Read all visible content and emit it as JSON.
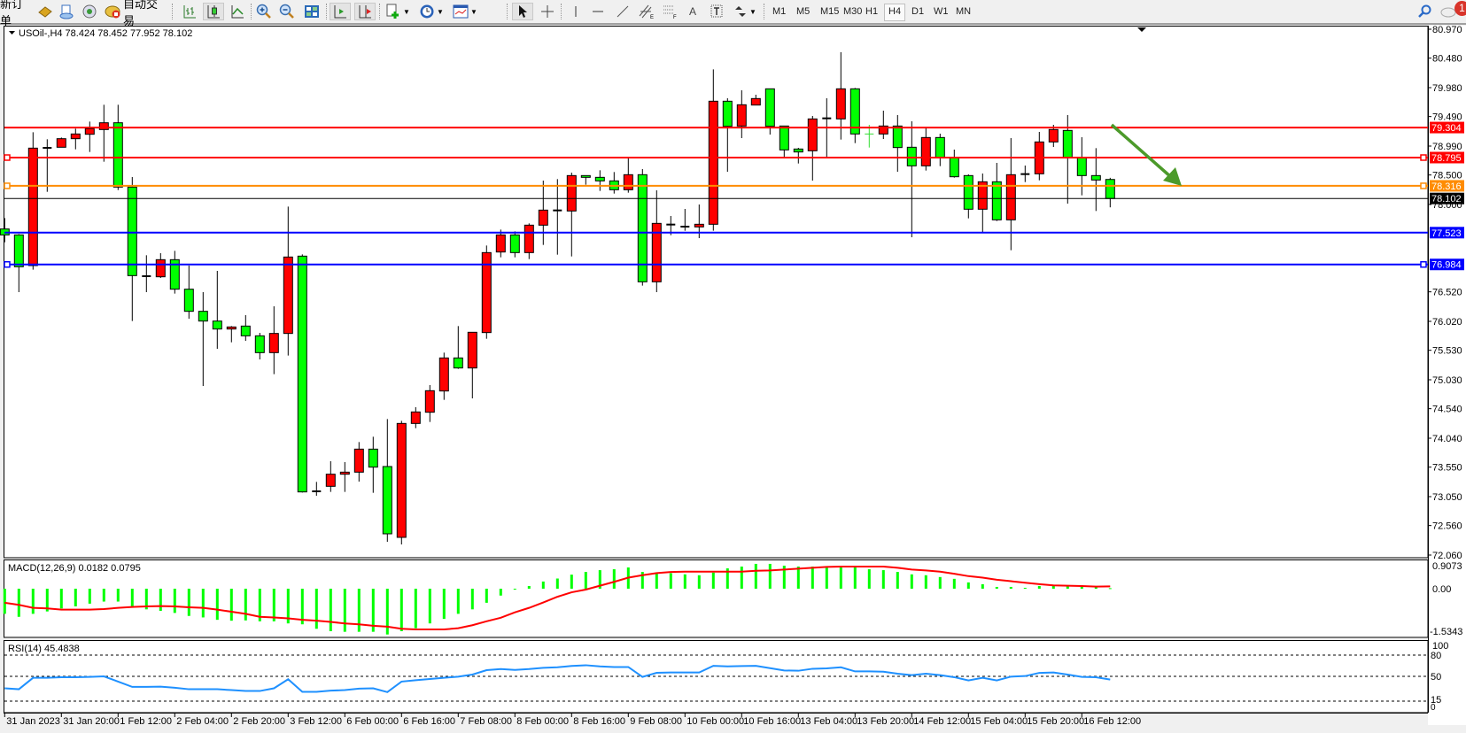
{
  "toolbar": {
    "new_order_label": "新订单",
    "auto_trading_label": "自动交易",
    "timeframes": [
      "M1",
      "M5",
      "M15",
      "M30",
      "H1",
      "H4",
      "D1",
      "W1",
      "MN"
    ],
    "active_timeframe": "H4",
    "notification_count": "1"
  },
  "chart": {
    "header": "USOil-,H4  78.424 78.452 77.952 78.102",
    "symbol": "USOil-",
    "timeframe": "H4",
    "up_color": "#ff0000",
    "down_color": "#00ff00",
    "price_ticks": [
      "80.970",
      "80.480",
      "79.980",
      "79.490",
      "78.990",
      "78.500",
      "78.000",
      "76.520",
      "76.020",
      "75.530",
      "75.030",
      "74.540",
      "74.040",
      "73.550",
      "73.050",
      "72.560",
      "72.060"
    ],
    "hlines": [
      {
        "price": 79.304,
        "label": "79.304",
        "color": "#ff0000",
        "selected": false
      },
      {
        "price": 78.795,
        "label": "78.795",
        "color": "#ff0000",
        "selected": true
      },
      {
        "price": 78.316,
        "label": "78.316",
        "color": "#ff8c00",
        "selected": true
      },
      {
        "price": 77.523,
        "label": "77.523",
        "color": "#0000ff",
        "selected": false
      },
      {
        "price": 76.984,
        "label": "76.984",
        "color": "#0000ff",
        "selected": true
      }
    ],
    "bid": {
      "price": 78.102,
      "label": "78.102",
      "color": "#000000"
    },
    "arrow_color": "#4c9a2a",
    "time_labels": [
      "31 Jan 2023",
      "31 Jan 20:00",
      "1 Feb 12:00",
      "2 Feb 04:00",
      "2 Feb 20:00",
      "3 Feb 12:00",
      "6 Feb 00:00",
      "6 Feb 16:00",
      "7 Feb 08:00",
      "8 Feb 00:00",
      "8 Feb 16:00",
      "9 Feb 08:00",
      "10 Feb 00:00",
      "10 Feb 16:00",
      "13 Feb 04:00",
      "13 Feb 20:00",
      "14 Feb 12:00",
      "15 Feb 04:00",
      "15 Feb 20:00",
      "16 Feb 12:00"
    ]
  },
  "macd": {
    "label": "MACD(12,26,9) 0.0182 0.0795",
    "ticks": [
      "0.9073",
      "0.00",
      "-1.5343"
    ],
    "histogram_color": "#00ff00",
    "signal_color": "#ff0000"
  },
  "rsi": {
    "label": "RSI(14) 45.4838",
    "ticks": [
      "100",
      "80",
      "50",
      "15",
      "0"
    ],
    "color": "#1e90ff"
  },
  "chart_data": {
    "type": "candlestick",
    "ohlc": [
      [
        77.585,
        77.77,
        77.36,
        77.485
      ],
      [
        77.485,
        77.5,
        76.515,
        76.945
      ],
      [
        76.965,
        79.225,
        76.895,
        78.955
      ],
      [
        78.96,
        79.105,
        78.215,
        78.96
      ],
      [
        78.97,
        79.135,
        78.97,
        79.115
      ],
      [
        79.115,
        79.285,
        78.935,
        79.195
      ],
      [
        79.19,
        79.405,
        78.89,
        79.285
      ],
      [
        79.27,
        79.69,
        78.725,
        79.385
      ],
      [
        79.385,
        79.69,
        78.245,
        78.295
      ],
      [
        78.295,
        78.465,
        76.025,
        76.795
      ],
      [
        76.785,
        77.14,
        76.515,
        76.785
      ],
      [
        76.775,
        77.175,
        76.755,
        77.065
      ],
      [
        77.065,
        77.215,
        76.49,
        76.565
      ],
      [
        76.565,
        76.965,
        76.065,
        76.19
      ],
      [
        76.19,
        76.515,
        74.925,
        76.025
      ],
      [
        76.025,
        76.875,
        75.555,
        75.89
      ],
      [
        75.89,
        75.94,
        75.665,
        75.925
      ],
      [
        75.94,
        76.125,
        75.69,
        75.775
      ],
      [
        75.775,
        75.825,
        75.375,
        75.49
      ],
      [
        75.49,
        76.275,
        75.125,
        75.815
      ],
      [
        75.815,
        77.965,
        75.44,
        77.11
      ],
      [
        77.125,
        77.155,
        73.12,
        73.13
      ],
      [
        73.14,
        73.3,
        73.065,
        73.14
      ],
      [
        73.225,
        73.65,
        73.13,
        73.43
      ],
      [
        73.43,
        73.635,
        73.13,
        73.465
      ],
      [
        73.465,
        73.975,
        73.305,
        73.855
      ],
      [
        73.855,
        74.065,
        73.115,
        73.55
      ],
      [
        73.56,
        74.365,
        72.285,
        72.42
      ],
      [
        72.36,
        74.335,
        72.24,
        74.29
      ],
      [
        74.29,
        74.565,
        74.21,
        74.485
      ],
      [
        74.48,
        74.94,
        74.315,
        74.845
      ],
      [
        74.84,
        75.49,
        74.69,
        75.4
      ],
      [
        75.4,
        75.94,
        75.215,
        75.23
      ],
      [
        75.23,
        75.835,
        74.715,
        75.835
      ],
      [
        75.83,
        77.305,
        75.725,
        77.185
      ],
      [
        77.195,
        77.575,
        77.105,
        77.485
      ],
      [
        77.485,
        77.545,
        77.105,
        77.185
      ],
      [
        77.185,
        77.68,
        77.075,
        77.65
      ],
      [
        77.65,
        78.405,
        77.315,
        77.905
      ],
      [
        77.9,
        78.43,
        77.15,
        77.9
      ],
      [
        77.89,
        78.54,
        77.12,
        78.49
      ],
      [
        78.49,
        78.49,
        78.335,
        78.46
      ],
      [
        78.46,
        78.58,
        78.23,
        78.4
      ],
      [
        78.4,
        78.55,
        78.185,
        78.25
      ],
      [
        78.25,
        78.785,
        78.2,
        78.505
      ],
      [
        78.505,
        78.6,
        76.625,
        76.69
      ],
      [
        76.69,
        78.24,
        76.515,
        77.68
      ],
      [
        77.66,
        77.805,
        77.48,
        77.66
      ],
      [
        77.625,
        77.925,
        77.555,
        77.625
      ],
      [
        77.62,
        78.0,
        77.43,
        77.665
      ],
      [
        77.665,
        80.29,
        77.555,
        79.75
      ],
      [
        79.75,
        79.8,
        78.555,
        79.325
      ],
      [
        79.33,
        79.935,
        79.125,
        79.69
      ],
      [
        79.685,
        79.86,
        79.685,
        79.795
      ],
      [
        79.96,
        79.96,
        79.185,
        79.325
      ],
      [
        79.33,
        79.33,
        78.81,
        78.925
      ],
      [
        78.94,
        78.96,
        78.695,
        78.89
      ],
      [
        78.91,
        79.5,
        78.405,
        79.45
      ],
      [
        79.46,
        79.8,
        78.81,
        79.46
      ],
      [
        79.45,
        80.58,
        79.1,
        79.96
      ],
      [
        79.96,
        79.975,
        79.04,
        79.195
      ],
      [
        79.195,
        79.35,
        78.965,
        79.195
      ],
      [
        79.195,
        79.59,
        79.11,
        79.33
      ],
      [
        79.33,
        79.515,
        78.555,
        78.965
      ],
      [
        78.97,
        79.41,
        77.445,
        78.655
      ],
      [
        78.655,
        79.29,
        78.575,
        79.135
      ],
      [
        79.135,
        79.2,
        78.65,
        78.8
      ],
      [
        78.8,
        78.93,
        78.455,
        78.47
      ],
      [
        78.49,
        78.51,
        77.765,
        77.92
      ],
      [
        77.92,
        78.525,
        77.535,
        78.385
      ],
      [
        78.385,
        78.705,
        77.72,
        77.74
      ],
      [
        77.74,
        79.125,
        77.225,
        78.505
      ],
      [
        78.515,
        78.66,
        78.38,
        78.515
      ],
      [
        78.52,
        79.23,
        78.41,
        79.06
      ],
      [
        79.06,
        79.35,
        78.975,
        79.27
      ],
      [
        79.255,
        79.515,
        78.015,
        78.8
      ],
      [
        78.79,
        79.14,
        78.155,
        78.49
      ],
      [
        78.49,
        78.955,
        77.89,
        78.415
      ],
      [
        78.424,
        78.452,
        77.952,
        78.102
      ]
    ],
    "ylim": [
      72.06,
      80.97
    ],
    "macd_histogram": [
      -0.84,
      -0.94,
      -0.84,
      -0.76,
      -0.66,
      -0.59,
      -0.5,
      -0.43,
      -0.43,
      -0.59,
      -0.69,
      -0.74,
      -0.81,
      -0.91,
      -0.96,
      -1.04,
      -1.07,
      -1.06,
      -1.09,
      -1.09,
      -1.16,
      -1.19,
      -1.34,
      -1.42,
      -1.44,
      -1.44,
      -1.44,
      -1.53,
      -1.42,
      -1.32,
      -1.16,
      -1.01,
      -0.84,
      -0.69,
      -0.47,
      -0.23,
      -0.03,
      0.09,
      0.24,
      0.34,
      0.47,
      0.56,
      0.62,
      0.65,
      0.71,
      0.56,
      0.5,
      0.52,
      0.48,
      0.45,
      0.54,
      0.68,
      0.74,
      0.83,
      0.83,
      0.77,
      0.74,
      0.74,
      0.71,
      0.74,
      0.74,
      0.65,
      0.62,
      0.56,
      0.48,
      0.45,
      0.39,
      0.33,
      0.21,
      0.15,
      0.06,
      0.06,
      0.03,
      0.09,
      0.09,
      0.09,
      0.06,
      0.06,
      0.0182
    ],
    "macd_signal": [
      -0.47,
      -0.54,
      -0.64,
      -0.66,
      -0.7,
      -0.7,
      -0.7,
      -0.68,
      -0.64,
      -0.61,
      -0.59,
      -0.58,
      -0.59,
      -0.62,
      -0.64,
      -0.7,
      -0.77,
      -0.84,
      -0.94,
      -0.96,
      -0.99,
      -1.04,
      -1.07,
      -1.11,
      -1.16,
      -1.19,
      -1.24,
      -1.27,
      -1.34,
      -1.36,
      -1.36,
      -1.36,
      -1.32,
      -1.22,
      -1.09,
      -0.97,
      -0.79,
      -0.64,
      -0.46,
      -0.27,
      -0.12,
      -0.03,
      0.1,
      0.23,
      0.37,
      0.45,
      0.52,
      0.56,
      0.57,
      0.57,
      0.57,
      0.57,
      0.57,
      0.6,
      0.61,
      0.64,
      0.67,
      0.7,
      0.73,
      0.74,
      0.74,
      0.74,
      0.74,
      0.7,
      0.64,
      0.61,
      0.57,
      0.5,
      0.42,
      0.37,
      0.3,
      0.25,
      0.2,
      0.15,
      0.11,
      0.1,
      0.09,
      0.07,
      0.0795
    ],
    "macd_range": [
      -1.5343,
      0.9073
    ],
    "rsi": [
      33.1,
      31.8,
      47.9,
      47.9,
      48.8,
      48.8,
      49.2,
      50.0,
      42.6,
      35.1,
      35.1,
      35.5,
      33.9,
      31.8,
      31.8,
      31.8,
      30.6,
      29.3,
      29.3,
      33.1,
      45.9,
      28.1,
      28.1,
      29.8,
      30.6,
      32.6,
      33.1,
      27.7,
      42.6,
      44.6,
      46.3,
      47.9,
      49.6,
      52.5,
      58.7,
      60.3,
      59.1,
      60.3,
      62.0,
      62.8,
      64.7,
      65.7,
      64.0,
      63.2,
      63.2,
      49.2,
      55.0,
      55.4,
      55.4,
      55.4,
      64.9,
      64.0,
      64.5,
      64.9,
      61.6,
      58.3,
      57.9,
      60.7,
      61.2,
      62.8,
      57.0,
      57.0,
      56.6,
      53.7,
      51.7,
      53.7,
      51.7,
      48.8,
      44.2,
      47.9,
      44.2,
      49.6,
      50.4,
      54.9,
      55.4,
      52.5,
      49.2,
      48.8,
      45.4838
    ],
    "rsi_levels": [
      80,
      50,
      15
    ]
  }
}
